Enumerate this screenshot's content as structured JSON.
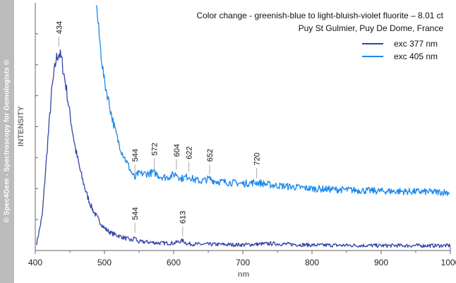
{
  "copyright": "© Spec4Gem - Spectroscopy for Gemologists ©",
  "colors": {
    "exc377": "#3344aa",
    "exc405": "#1a88ee",
    "axis": "#666666",
    "text": "#111111",
    "band": "#bcbcbc"
  },
  "chart_data": {
    "type": "line",
    "title": "Color change - greenish-blue to light-bluish-violet fluorite – 8.01 ct",
    "subtitle": "Puy St Gulmier, Puy De Dome, France",
    "xlabel": "nm",
    "ylabel": "INTENSITY",
    "xlim": [
      400,
      1000
    ],
    "ylim": [
      0,
      100
    ],
    "xticks": [
      400,
      500,
      600,
      700,
      800,
      900,
      1000
    ],
    "legend_position": "top-right",
    "series": [
      {
        "name": "exc 377 nm",
        "color": "#3344aa",
        "x": [
          402,
          410,
          418,
          424,
          430,
          434,
          438,
          444,
          450,
          458,
          466,
          474,
          482,
          490,
          500,
          510,
          520,
          530,
          540,
          544,
          548,
          560,
          580,
          600,
          613,
          620,
          640,
          660,
          700,
          740,
          800,
          900,
          1000
        ],
        "y": [
          3,
          14,
          44,
          65,
          77,
          80,
          77,
          67,
          55,
          41,
          31,
          23,
          17,
          13,
          9,
          7,
          6,
          5,
          4,
          5.5,
          3.5,
          3.5,
          3,
          3,
          4,
          2.7,
          2.5,
          2.5,
          2.3,
          2.8,
          2.2,
          2,
          2
        ]
      },
      {
        "name": "exc 405 nm",
        "color": "#1a88ee",
        "x": [
          488,
          492,
          496,
          500,
          505,
          510,
          515,
          520,
          525,
          530,
          535,
          540,
          544,
          548,
          560,
          572,
          580,
          590,
          604,
          610,
          622,
          630,
          640,
          652,
          660,
          680,
          700,
          720,
          740,
          760,
          800,
          850,
          900,
          950,
          1000
        ],
        "y": [
          100,
          88,
          77,
          68,
          62,
          55,
          49,
          44,
          40,
          37,
          34,
          31,
          29,
          31,
          31,
          31.5,
          30,
          29.5,
          31,
          29,
          30,
          28.5,
          28,
          29,
          28,
          27.5,
          27,
          27.5,
          26.5,
          26,
          25,
          24.5,
          24,
          23.8,
          23.5
        ]
      }
    ],
    "annotations": [
      {
        "series": "exc 377 nm",
        "x": 434,
        "label": "434"
      },
      {
        "series": "exc 377 nm",
        "x": 544,
        "label": "544"
      },
      {
        "series": "exc 377 nm",
        "x": 613,
        "label": "613"
      },
      {
        "series": "exc 405 nm",
        "x": 544,
        "label": "544"
      },
      {
        "series": "exc 405 nm",
        "x": 572,
        "label": "572"
      },
      {
        "series": "exc 405 nm",
        "x": 604,
        "label": "604"
      },
      {
        "series": "exc 405 nm",
        "x": 622,
        "label": "622"
      },
      {
        "series": "exc 405 nm",
        "x": 652,
        "label": "652"
      },
      {
        "series": "exc 405 nm",
        "x": 720,
        "label": "720"
      }
    ]
  }
}
